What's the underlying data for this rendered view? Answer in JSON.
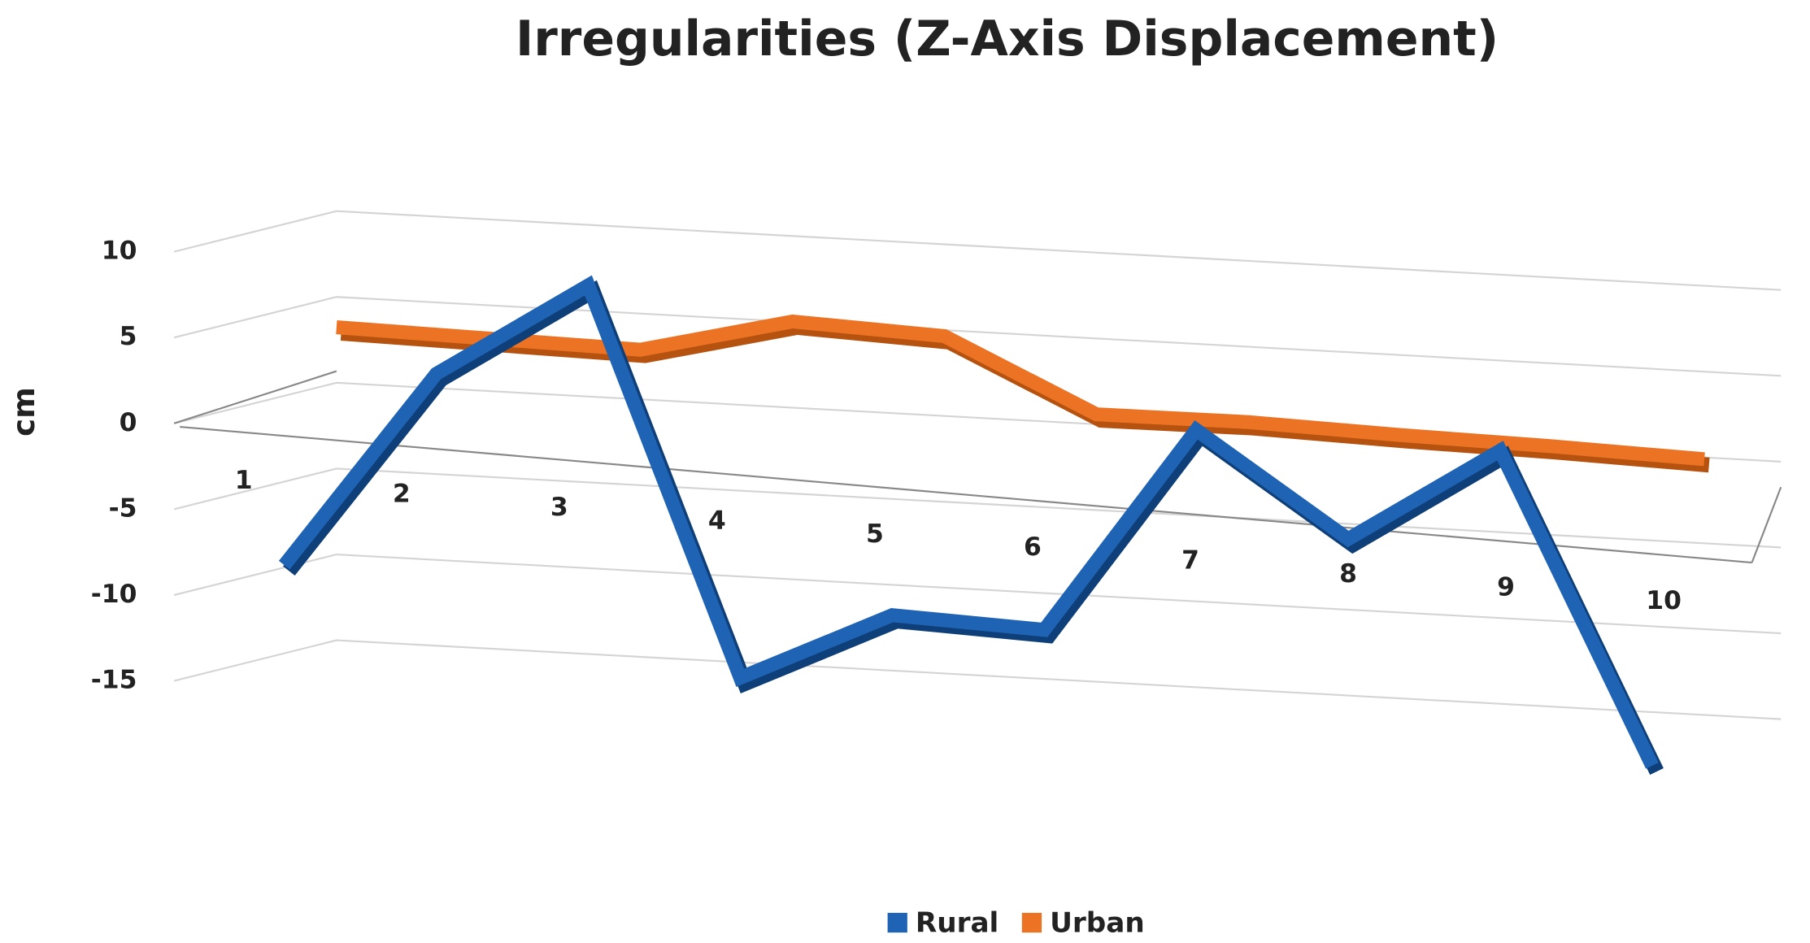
{
  "chart_data": {
    "type": "line3d",
    "title": "Irregularities (Z-Axis Displacement)",
    "y_label": "cm",
    "categories": [
      "1",
      "2",
      "3",
      "4",
      "5",
      "6",
      "7",
      "8",
      "9",
      "10"
    ],
    "series": [
      {
        "name": "Rural",
        "color": "#1f63b5",
        "values": [
          -8,
          3.5,
          9,
          -13.5,
          -9.5,
          -10,
          2,
          -4,
          1.5,
          -16.5
        ]
      },
      {
        "name": "Urban",
        "color": "#ec7324",
        "values": [
          5.3,
          5,
          4.7,
          6.7,
          6.2,
          2,
          1.9,
          1.5,
          1.2,
          0.8
        ]
      }
    ],
    "ylim": [
      -15,
      10
    ],
    "yticks": [
      -15,
      -10,
      -5,
      0,
      5,
      10
    ],
    "grid": true,
    "legend": "bottom"
  }
}
